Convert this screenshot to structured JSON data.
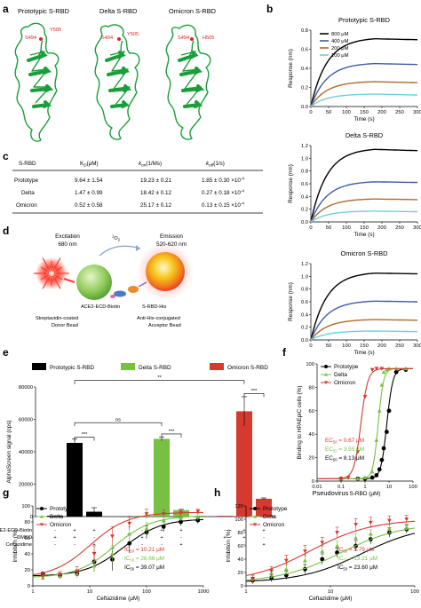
{
  "panel_letters": {
    "a": "a",
    "b": "b",
    "c": "c",
    "d": "d",
    "e": "e",
    "f": "f",
    "g": "g",
    "h": "h"
  },
  "structures": {
    "titles": [
      "Prototypic S-RBD",
      "Delta S-RBD",
      "Omicron S-RBD"
    ],
    "labels": [
      {
        "res1": "S494",
        "res2": "Y505"
      },
      {
        "res1": "S494",
        "res2": "Y505"
      },
      {
        "res1": "S494",
        "res2": "H505"
      }
    ],
    "colors": {
      "ribbon": "#1a9e3a",
      "label": "#e0211b"
    }
  },
  "table": {
    "headers": [
      "S-RBD",
      "K",
      "D",
      "(μM)",
      "k",
      "on",
      "(1/Ms)",
      "k",
      "off",
      "(1/s)"
    ],
    "rows": [
      {
        "name": "Prototype",
        "kd": "9.64 ± 1.54",
        "kon": "19.23 ± 0.21",
        "koff": "1.85 ± 0.30 ×10",
        "exp": "-4"
      },
      {
        "name": "Delta",
        "kd": "1.47 ± 0.99",
        "kon": "18.42 ± 0.12",
        "koff": "0.27 ± 0.18 ×10",
        "exp": "-4"
      },
      {
        "name": "Omicron",
        "kd": "0.52 ± 0.58",
        "kon": "25.17 ± 0.12",
        "koff": "0.13 ± 0.15 ×10",
        "exp": "-4"
      }
    ]
  },
  "schematic": {
    "excitation": "Excitation",
    "excitation_nm": "680 nm",
    "singlet_o2": "1",
    "singlet_o2_b": "O",
    "singlet_o2_c": "2",
    "emission": "Emission",
    "emission_nm": "520-620 nm",
    "ace2": "ACE2-ECD-Biotin",
    "srbd": "S-RBD-His",
    "donor1": "Streptavidin-coated",
    "donor2": "Donor Bead",
    "acceptor1": "Anti-His-conjugated",
    "acceptor2": "Acceptor Bead"
  },
  "chart_data": [
    {
      "type": "line",
      "title": "Prototypic S-RBD",
      "xlabel": "Time (s)",
      "ylabel": "Response (nm)",
      "xlim": [
        0,
        300
      ],
      "ylim": [
        0,
        0.8
      ],
      "xticks": [
        "0",
        "50",
        "100",
        "150",
        "200",
        "250",
        "300"
      ],
      "yticks": [
        "0.0",
        "0.2",
        "0.4",
        "0.6",
        "0.8"
      ],
      "legend": [
        "800 μM",
        "400 μM",
        "200 μM",
        "100 μM"
      ],
      "series": [
        {
          "name": "800 μM",
          "color": "#000000",
          "plateau": 0.71,
          "final": 0.7
        },
        {
          "name": "400 μM",
          "color": "#3e5ba6",
          "plateau": 0.45,
          "final": 0.44
        },
        {
          "name": "200 μM",
          "color": "#b06a2a",
          "plateau": 0.26,
          "final": 0.25
        },
        {
          "name": "100 μM",
          "color": "#6bd1e0",
          "plateau": 0.13,
          "final": 0.12
        }
      ]
    },
    {
      "type": "line",
      "title": "Delta S-RBD",
      "xlabel": "Time (s)",
      "ylabel": "Response (nm)",
      "xlim": [
        0,
        300
      ],
      "ylim": [
        0,
        1.2
      ],
      "xticks": [
        "0",
        "50",
        "100",
        "150",
        "200",
        "250",
        "300"
      ],
      "yticks": [
        "0.0",
        "0.2",
        "0.4",
        "0.6",
        "0.8",
        "1.0",
        "1.2"
      ],
      "series": [
        {
          "color": "#000000",
          "plateau": 1.14,
          "final": 1.12
        },
        {
          "color": "#3e5ba6",
          "plateau": 0.63,
          "final": 0.62
        },
        {
          "color": "#b06a2a",
          "plateau": 0.36,
          "final": 0.35
        },
        {
          "color": "#6bd1e0",
          "plateau": 0.17,
          "final": 0.16
        }
      ]
    },
    {
      "type": "line",
      "title": "Omicron S-RBD",
      "xlabel": "Time (s)",
      "ylabel": "Response (nm)",
      "xlim": [
        0,
        300
      ],
      "ylim": [
        0,
        1.2
      ],
      "xticks": [
        "0",
        "50",
        "100",
        "150",
        "200",
        "250",
        "300"
      ],
      "yticks": [
        "0.0",
        "0.2",
        "0.4",
        "0.6",
        "0.8",
        "1.0",
        "1.2"
      ],
      "series": [
        {
          "color": "#000000",
          "plateau": 1.05,
          "final": 1.04
        },
        {
          "color": "#3e5ba6",
          "plateau": 0.61,
          "final": 0.6
        },
        {
          "color": "#b06a2a",
          "plateau": 0.32,
          "final": 0.31
        },
        {
          "color": "#6bd1e0",
          "plateau": 0.14,
          "final": 0.13
        }
      ]
    },
    {
      "type": "bar",
      "ylabel": "AlphaScreen signal (cps)",
      "ylim": [
        0,
        80000
      ],
      "yticks": [
        "0",
        "20000",
        "40000",
        "60000",
        "80000"
      ],
      "legend": [
        "Prototypic S-RBD",
        "Delta S-RBD",
        "Omicron S-RBD"
      ],
      "groups": [
        {
          "name": "Prototypic S-RBD",
          "color": "#000000",
          "values": [
            500,
            45500,
            3000
          ],
          "errors": [
            0,
            2500,
            2500
          ]
        },
        {
          "name": "Delta S-RBD",
          "color": "#77c043",
          "values": [
            500,
            48000,
            4000
          ],
          "errors": [
            0,
            1200,
            400
          ]
        },
        {
          "name": "Omicron S-RBD",
          "color": "#d63a2f",
          "values": [
            500,
            65000,
            11000
          ],
          "errors": [
            0,
            9000,
            500
          ]
        }
      ],
      "conditions": {
        "rows": [
          "ACE2-ECD-Biotin",
          "DMSO",
          "Ceftazidime"
        ],
        "marks": [
          [
            "-",
            "+",
            "+"
          ],
          [
            "+",
            "+",
            "-"
          ],
          [
            "-",
            "-",
            "+"
          ]
        ]
      },
      "significance": [
        "***",
        "***",
        "***",
        "ns",
        "**"
      ]
    },
    {
      "type": "scatter",
      "xlabel": "S-RBD (μM)",
      "ylabel": "Binding to HPAEpiC cells (%)",
      "xscale": "log",
      "xlim": [
        0.01,
        100
      ],
      "ylim": [
        0,
        100
      ],
      "xticks": [
        "0.01",
        "0.1",
        "1",
        "10",
        "100"
      ],
      "yticks": [
        "0",
        "20",
        "40",
        "60",
        "80",
        "100"
      ],
      "legend": [
        "Prototype",
        "Delta",
        "Omicron"
      ],
      "annotations": [
        {
          "text": "EC",
          "sub": "50",
          "rest": " = 0.67 μM",
          "color": "#d63a2f"
        },
        {
          "text": "EC",
          "sub": "50",
          "rest": " = 3.55 μM",
          "color": "#77c043"
        },
        {
          "text": "EC",
          "sub": "50",
          "rest": " = 8.13 μM",
          "color": "#000000"
        }
      ],
      "series": [
        {
          "name": "Prototype",
          "color": "#000000",
          "marker": "circle",
          "ec50": 8.13,
          "hill": 3.5,
          "x": [
            0.1,
            0.5,
            1,
            2,
            3,
            4,
            5,
            6,
            8,
            10,
            20,
            50
          ],
          "y": [
            2,
            2,
            2,
            3,
            5,
            10,
            18,
            28,
            42,
            60,
            93,
            95
          ]
        },
        {
          "name": "Delta",
          "color": "#77c043",
          "marker": "triangle-up",
          "ec50": 3.55,
          "hill": 4,
          "x": [
            0.1,
            0.5,
            1,
            2,
            3,
            4,
            5,
            6,
            8,
            10,
            20,
            50
          ],
          "y": [
            2,
            2,
            3,
            8,
            35,
            60,
            82,
            93,
            95,
            96,
            96,
            96
          ]
        },
        {
          "name": "Omicron",
          "color": "#d63a2f",
          "marker": "triangle-down",
          "ec50": 0.67,
          "hill": 3,
          "x": [
            0.1,
            0.2,
            0.5,
            1,
            2,
            3,
            5
          ],
          "y": [
            2,
            3,
            25,
            72,
            95,
            96,
            96
          ]
        }
      ]
    },
    {
      "type": "scatter",
      "xlabel": "Ceftazidime (μM)",
      "ylabel": "Inhibition (%)",
      "xscale": "log",
      "xlim": [
        1,
        1000
      ],
      "ylim": [
        0,
        100
      ],
      "xticks": [
        "1",
        "10",
        "100",
        "1000"
      ],
      "yticks": [
        "0",
        "20",
        "40",
        "60",
        "80",
        "100"
      ],
      "legend": [
        "Prototype",
        "Delta",
        "Omicron"
      ],
      "annotations": [
        {
          "text": "IC",
          "sub": "50",
          "rest": " = 10.21 μM",
          "color": "#d63a2f"
        },
        {
          "text": "IC",
          "sub": "50",
          "rest": " = 26.66 μM",
          "color": "#77c043"
        },
        {
          "text": "IC",
          "sub": "50",
          "rest": " = 39.07 μM",
          "color": "#000000"
        }
      ],
      "series": [
        {
          "name": "Prototype",
          "color": "#000000",
          "marker": "circle",
          "bottom": 12,
          "top": 84,
          "ic50": 39.07,
          "x": [
            1.5,
            3,
            6,
            12,
            25,
            50,
            100,
            200,
            400,
            800
          ],
          "y": [
            15,
            13,
            15,
            30,
            33,
            53,
            67,
            74,
            80,
            82
          ],
          "err": [
            2,
            3,
            5,
            12,
            14,
            12,
            8,
            6,
            5,
            4
          ]
        },
        {
          "name": "Delta",
          "color": "#77c043",
          "marker": "triangle-up",
          "bottom": 10,
          "top": 88,
          "ic50": 26.66,
          "x": [
            1.5,
            3,
            6,
            12,
            25,
            50,
            100,
            200,
            400,
            800
          ],
          "y": [
            10,
            12,
            15,
            25,
            40,
            65,
            72,
            82,
            85,
            86
          ],
          "err": [
            3,
            4,
            5,
            8,
            10,
            9,
            7,
            6,
            4,
            4
          ]
        },
        {
          "name": "Omicron",
          "color": "#d63a2f",
          "marker": "triangle-down",
          "bottom": 10,
          "top": 92,
          "ic50": 10.21,
          "x": [
            1.5,
            3,
            6,
            12,
            25,
            50,
            100,
            200,
            400,
            800
          ],
          "y": [
            12,
            14,
            18,
            40,
            62,
            78,
            90,
            90,
            91,
            93
          ],
          "err": [
            3,
            4,
            6,
            10,
            12,
            8,
            6,
            5,
            4,
            3
          ]
        }
      ]
    },
    {
      "type": "scatter",
      "title": "Pseudovirus",
      "xlabel": "Ceftazidime (μM)",
      "ylabel": "Inhibition (%)",
      "xscale": "log",
      "xlim": [
        1,
        100
      ],
      "ylim": [
        0,
        120
      ],
      "xticks": [
        "1",
        "10",
        "100"
      ],
      "yticks": [
        "0",
        "20",
        "40",
        "60",
        "80",
        "100",
        "120"
      ],
      "legend": [
        "Prototype",
        "Delta",
        "Omicron"
      ],
      "annotations": [
        {
          "text": "IC",
          "sub": "50",
          "rest": " = 5.79 μM",
          "color": "#d63a2f"
        },
        {
          "text": "IC",
          "sub": "50",
          "rest": " = 13.21 μM",
          "color": "#77c043"
        },
        {
          "text": "IC",
          "sub": "50",
          "rest": " = 23.60 μM",
          "color": "#000000"
        }
      ],
      "series": [
        {
          "name": "Prototype",
          "color": "#000000",
          "marker": "circle",
          "bottom": 5,
          "top": 92,
          "ic50": 23.6,
          "x": [
            1.2,
            2,
            3,
            5,
            8,
            12,
            20,
            30,
            50,
            80
          ],
          "y": [
            8,
            12,
            16,
            25,
            40,
            50,
            60,
            70,
            80,
            85
          ],
          "err": [
            5,
            6,
            6,
            7,
            8,
            7,
            8,
            7,
            7,
            6
          ]
        },
        {
          "name": "Delta",
          "color": "#77c043",
          "marker": "triangle-up",
          "bottom": 5,
          "top": 94,
          "ic50": 13.21,
          "x": [
            1.2,
            2,
            3,
            5,
            8,
            12,
            20,
            30,
            50,
            80
          ],
          "y": [
            10,
            18,
            25,
            38,
            52,
            60,
            72,
            78,
            86,
            88
          ],
          "err": [
            6,
            7,
            7,
            8,
            8,
            7,
            7,
            6,
            6,
            5
          ]
        },
        {
          "name": "Omicron",
          "color": "#d63a2f",
          "marker": "triangle-down",
          "bottom": 5,
          "top": 100,
          "ic50": 5.79,
          "x": [
            1.2,
            2,
            3,
            5,
            8,
            12,
            20,
            30,
            50,
            80
          ],
          "y": [
            10,
            22,
            38,
            52,
            65,
            80,
            92,
            95,
            98,
            100
          ],
          "err": [
            6,
            7,
            8,
            9,
            8,
            8,
            9,
            8,
            7,
            6
          ]
        }
      ]
    }
  ]
}
